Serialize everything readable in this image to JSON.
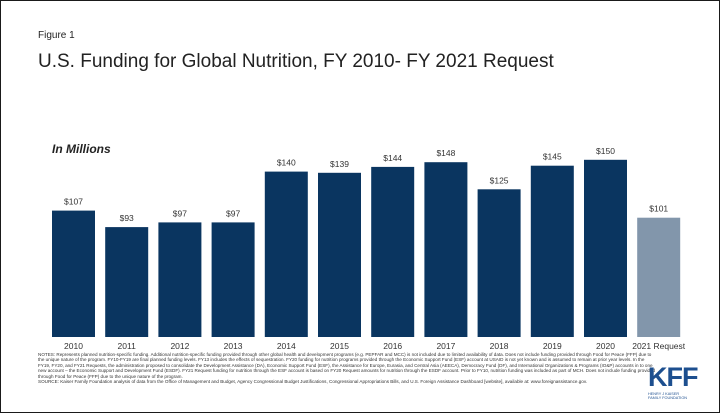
{
  "figure_label": "Figure 1",
  "title": "U.S. Funding for Global Nutrition, FY 2010- FY 2021 Request",
  "chart_data": {
    "type": "bar",
    "title": "U.S. Funding for Global Nutrition, FY 2010- FY 2021 Request",
    "subtitle": "In Millions",
    "categories": [
      "2010",
      "2011",
      "2012",
      "2013",
      "2014",
      "2015",
      "2016",
      "2017",
      "2018",
      "2019",
      "2020",
      "2021 Request"
    ],
    "values": [
      107,
      93,
      97,
      97,
      140,
      139,
      144,
      148,
      125,
      145,
      150,
      101
    ],
    "data_labels": [
      "$107",
      "$93",
      "$97",
      "$97",
      "$140",
      "$139",
      "$144",
      "$148",
      "$125",
      "$145",
      "$150",
      "$101"
    ],
    "colors": [
      "#0a3560",
      "#0a3560",
      "#0a3560",
      "#0a3560",
      "#0a3560",
      "#0a3560",
      "#0a3560",
      "#0a3560",
      "#0a3560",
      "#0a3560",
      "#0a3560",
      "#8296ab"
    ],
    "ylim": [
      0,
      160
    ],
    "grid": false,
    "legend": "none",
    "xlabel": "",
    "ylabel": ""
  },
  "notes": {
    "notes_text": "NOTES: Represents planned nutrition-specific funding. Additional nutrition-specific funding provided through other global health and development programs (e.g. PEPFAR and MCC) is not included due to limited availability of data. Does not include funding provided through Food for Peace (FFP) due to the unique nature of the program. FY10-FY19 are final planned funding levels. FY13 includes the effects of sequestration. FY20 funding for nutrition programs provided through the Economic Support Fund (ESF) account at USAID is not yet known and is assumed to remain at prior year levels. In the FY19, FY20, and FY21 Requests, the administration proposed to consolidate the Development Assistance (DA), Economic Support Fund (ESF), the Assistance for Europe, Eurasia, and Central Asia (AEECA), Democracy Fund (DF), and International Organizations & Programs (IO&P) accounts in to one new account – the Economic Support and Development Fund (ESDF). FY21 Request funding for nutrition through the ESF account is based on FY20 Request amounts for nutrition through the ESDF account. Prior to FY10, nutrition funding was included as part of MCH. Does not include funding provided through Food for Peace (FFP) due to the unique nature of the program.",
    "source_text": "SOURCE: Kaiser Family Foundation analysis of data from the Office of Management and Budget, Agency Congressional Budget Justifications, Congressional Appropriations Bills, and U.S. Foreign Assistance Dashboard [website], available at: www.foreignassistance.gov."
  },
  "logo": {
    "word": "KFF",
    "sub_line1": "HENRY J KAISER",
    "sub_line2": "FAMILY FOUNDATION",
    "color": "#1d4f8f"
  }
}
